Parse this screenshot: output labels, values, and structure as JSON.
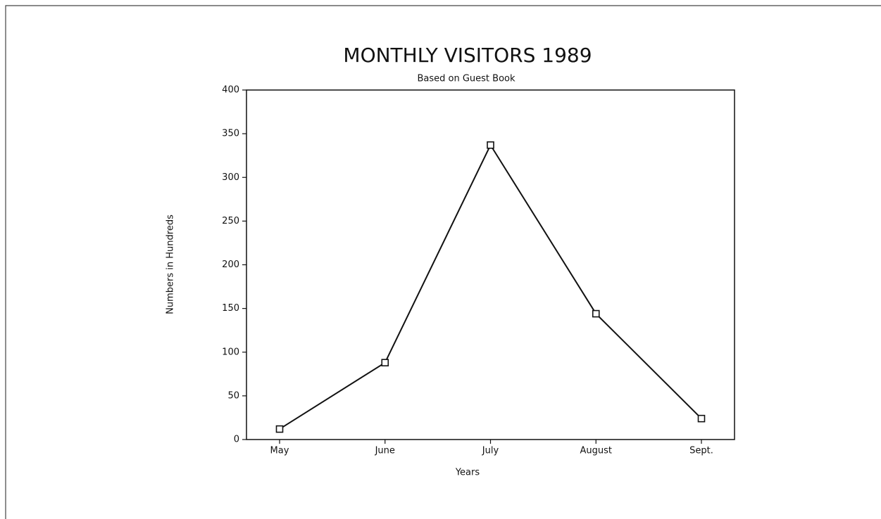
{
  "chart_data": {
    "type": "line",
    "title": "MONTHLY VISITORS 1989",
    "subtitle": "Based on Guest Book",
    "x_label": "Years",
    "y_label": "Numbers in Hundreds",
    "categories": [
      "May",
      "June",
      "July",
      "August",
      "Sept."
    ],
    "series": [
      {
        "name": "Visitors",
        "color": "#111111",
        "values": [
          12,
          88,
          337,
          144,
          24
        ]
      }
    ],
    "ylim": [
      0,
      400
    ],
    "yticks": [
      0,
      50,
      100,
      150,
      200,
      250,
      300,
      350,
      400
    ],
    "grid": false,
    "legend": false
  }
}
